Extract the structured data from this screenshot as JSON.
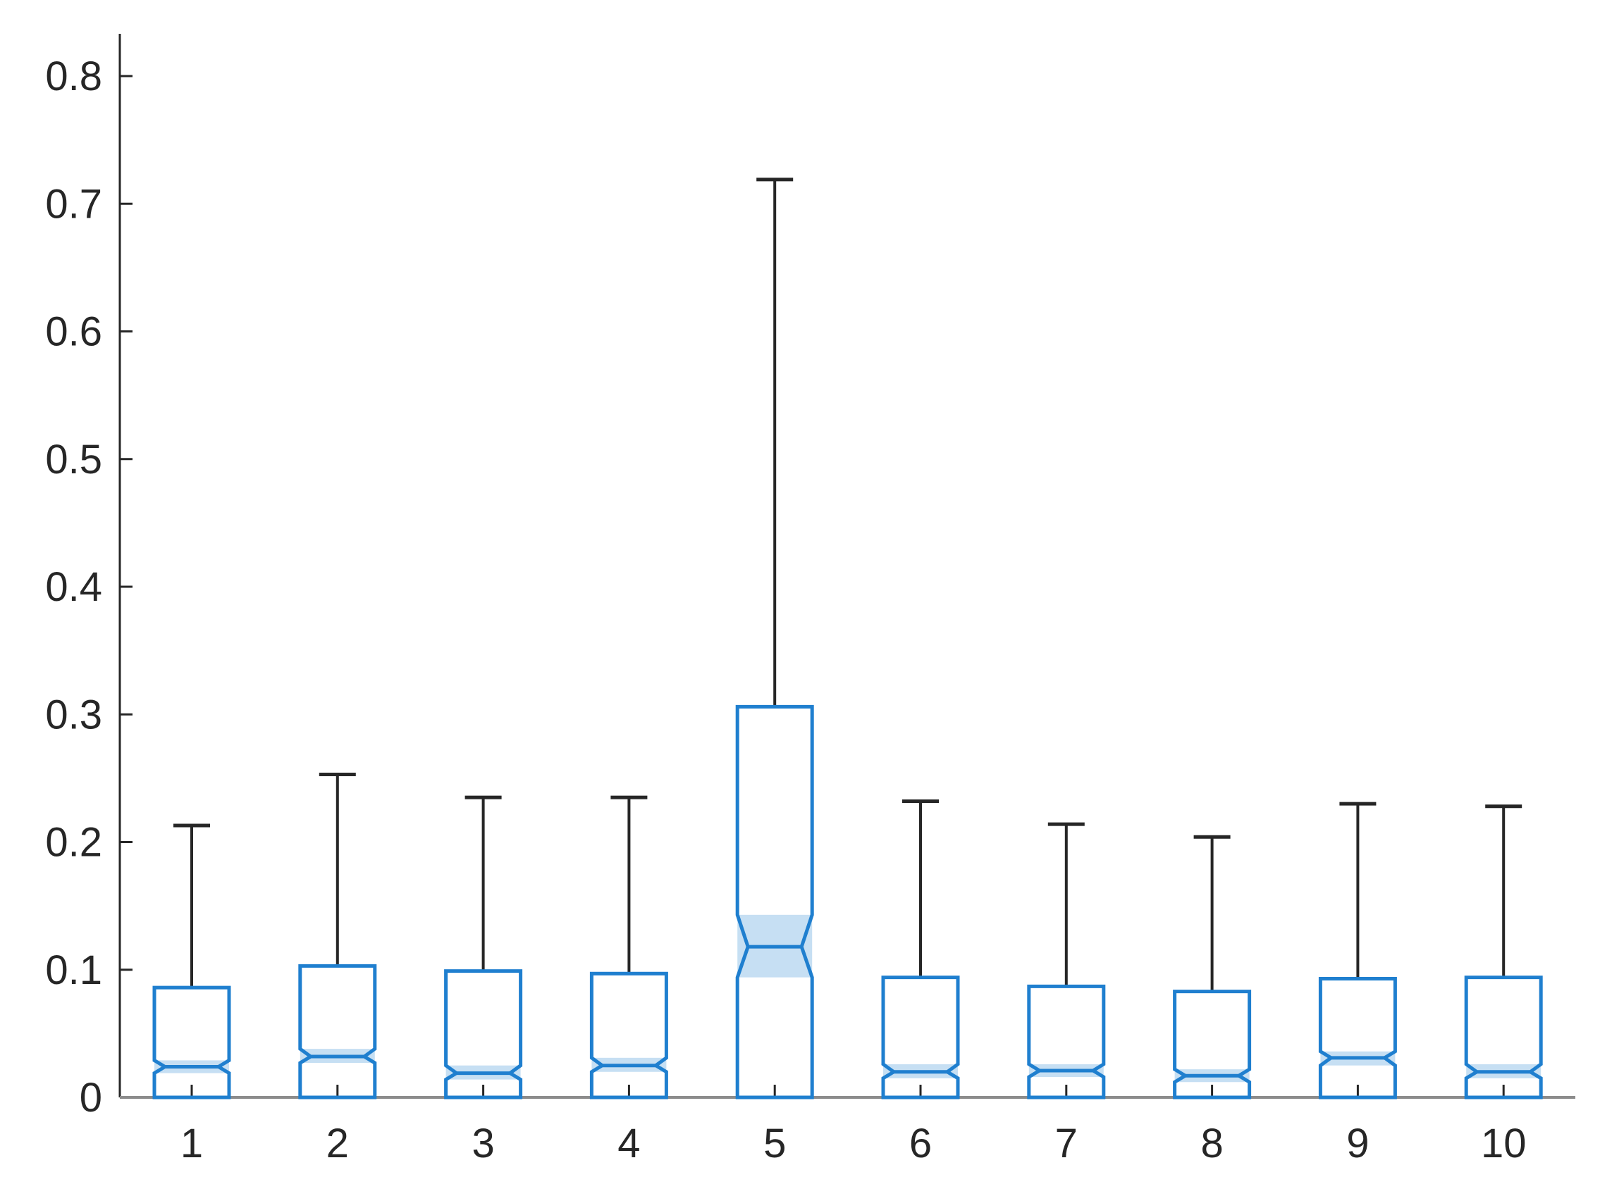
{
  "chart_data": {
    "type": "box",
    "notched": true,
    "title": "",
    "xlabel": "",
    "ylabel": "",
    "ylim": [
      0,
      0.83
    ],
    "yticks": [
      "0",
      "0.1",
      "0.2",
      "0.3",
      "0.4",
      "0.5",
      "0.6",
      "0.7",
      "0.8"
    ],
    "categories": [
      "1",
      "2",
      "3",
      "4",
      "5",
      "6",
      "7",
      "8",
      "9",
      "10"
    ],
    "boxes": [
      {
        "min": 0,
        "q1": 0,
        "median": 0.024,
        "q3": 0.086,
        "max": 0.213,
        "notch_low": 0.019,
        "notch_high": 0.029
      },
      {
        "min": 0,
        "q1": 0,
        "median": 0.032,
        "q3": 0.103,
        "max": 0.253,
        "notch_low": 0.027,
        "notch_high": 0.038
      },
      {
        "min": 0,
        "q1": 0,
        "median": 0.019,
        "q3": 0.099,
        "max": 0.235,
        "notch_low": 0.014,
        "notch_high": 0.025
      },
      {
        "min": 0,
        "q1": 0,
        "median": 0.025,
        "q3": 0.097,
        "max": 0.235,
        "notch_low": 0.02,
        "notch_high": 0.031
      },
      {
        "min": 0,
        "q1": 0,
        "median": 0.118,
        "q3": 0.306,
        "max": 0.719,
        "notch_low": 0.094,
        "notch_high": 0.143
      },
      {
        "min": 0,
        "q1": 0,
        "median": 0.02,
        "q3": 0.094,
        "max": 0.232,
        "notch_low": 0.015,
        "notch_high": 0.026
      },
      {
        "min": 0,
        "q1": 0,
        "median": 0.021,
        "q3": 0.087,
        "max": 0.214,
        "notch_low": 0.016,
        "notch_high": 0.026
      },
      {
        "min": 0,
        "q1": 0,
        "median": 0.017,
        "q3": 0.083,
        "max": 0.204,
        "notch_low": 0.012,
        "notch_high": 0.022
      },
      {
        "min": 0,
        "q1": 0,
        "median": 0.031,
        "q3": 0.093,
        "max": 0.23,
        "notch_low": 0.025,
        "notch_high": 0.036
      },
      {
        "min": 0,
        "q1": 0,
        "median": 0.02,
        "q3": 0.094,
        "max": 0.228,
        "notch_low": 0.015,
        "notch_high": 0.026
      }
    ],
    "colors": {
      "box": "#1f7fcf",
      "notch_fill": "#c6dff3",
      "whisker": "#262626",
      "axis": "#262626",
      "baseline": "#8c8c8c"
    },
    "grid": false
  }
}
